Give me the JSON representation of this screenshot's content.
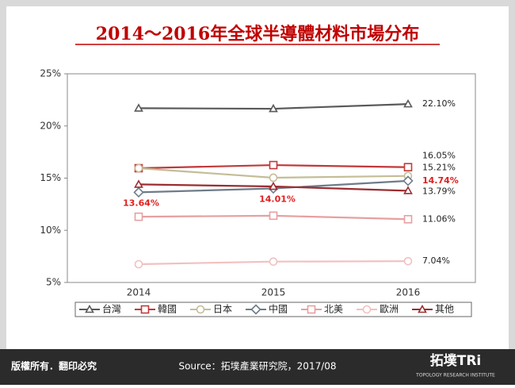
{
  "chart_data": {
    "type": "line",
    "title": "2014～2016年全球半導體材料市場分布",
    "categories": [
      "2014",
      "2015",
      "2016"
    ],
    "ylim": [
      5,
      25
    ],
    "yticks": [
      {
        "value": 5,
        "label": "5%"
      },
      {
        "value": 10,
        "label": "10%"
      },
      {
        "value": 15,
        "label": "15%"
      },
      {
        "value": 20,
        "label": "20%"
      },
      {
        "value": 25,
        "label": "25%"
      }
    ],
    "series": [
      {
        "name": "台灣",
        "color": "#595959",
        "marker": "triangle",
        "values": [
          21.7,
          21.65,
          22.1
        ],
        "value_labels": [
          null,
          null,
          "22.10%"
        ]
      },
      {
        "name": "韓國",
        "color": "#c0393b",
        "marker": "square",
        "values": [
          15.95,
          16.25,
          16.05
        ],
        "value_labels": [
          null,
          null,
          "16.05%"
        ]
      },
      {
        "name": "日本",
        "color": "#c4bd97",
        "marker": "circle",
        "values": [
          15.95,
          15.04,
          15.21
        ],
        "value_labels": [
          null,
          null,
          "15.21%"
        ]
      },
      {
        "name": "中國",
        "color": "#6f7b89",
        "marker": "diamond",
        "values": [
          13.64,
          14.01,
          14.74
        ],
        "value_labels": [
          "13.64%",
          "14.01%",
          "14.74%"
        ]
      },
      {
        "name": "北美",
        "color": "#e6a0a0",
        "marker": "square",
        "values": [
          11.3,
          11.4,
          11.06
        ],
        "value_labels": [
          null,
          null,
          "11.06%"
        ]
      },
      {
        "name": "歐洲",
        "color": "#f2c0c0",
        "marker": "circle",
        "values": [
          6.75,
          7.0,
          7.04
        ],
        "value_labels": [
          null,
          null,
          "7.04%"
        ]
      },
      {
        "name": "其他",
        "color": "#9b2d30",
        "marker": "triangle",
        "values": [
          14.4,
          14.2,
          13.79
        ],
        "value_labels": [
          null,
          null,
          "13.79%"
        ]
      }
    ]
  },
  "footer": {
    "rights": "版權所有．翻印必究",
    "source": "Source：拓墣產業研究院，2017/08",
    "logo": "拓墣TRi",
    "logo_sub": "TOPOLOGY RESEARCH INSTITUTE"
  }
}
